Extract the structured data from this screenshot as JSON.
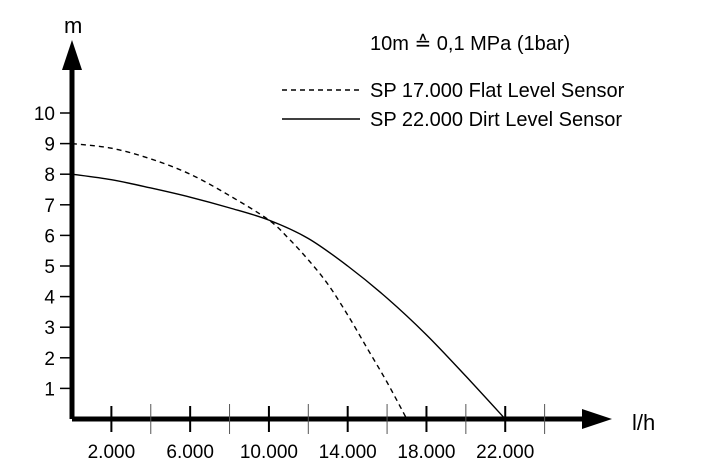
{
  "chart_data": {
    "type": "line",
    "title": "",
    "xlabel": "l/h",
    "ylabel": "m",
    "xlim": [
      0,
      26000
    ],
    "ylim": [
      0,
      11
    ],
    "x_ticks": [
      2000,
      4000,
      6000,
      8000,
      10000,
      12000,
      14000,
      16000,
      18000,
      20000,
      22000,
      24000
    ],
    "x_tick_labels": [
      {
        "x": 2000,
        "label": "2.000"
      },
      {
        "x": 6000,
        "label": "6.000"
      },
      {
        "x": 10000,
        "label": "10.000"
      },
      {
        "x": 14000,
        "label": "14.000"
      },
      {
        "x": 18000,
        "label": "18.000"
      },
      {
        "x": 22000,
        "label": "22.000"
      }
    ],
    "y_ticks": [
      {
        "y": 1,
        "label": "1"
      },
      {
        "y": 2,
        "label": "2"
      },
      {
        "y": 3,
        "label": "3"
      },
      {
        "y": 4,
        "label": "4"
      },
      {
        "y": 5,
        "label": "5"
      },
      {
        "y": 6,
        "label": "6"
      },
      {
        "y": 7,
        "label": "7"
      },
      {
        "y": 8,
        "label": "8"
      },
      {
        "y": 9,
        "label": "9"
      },
      {
        "y": 10,
        "label": "10"
      }
    ],
    "annotation": "10m ≙ 0,1 MPa (1bar)",
    "series": [
      {
        "name": "SP 17.000 Flat Level Sensor",
        "style": "dashed",
        "x": [
          0,
          2000,
          4000,
          6000,
          8000,
          10000,
          11000,
          12000,
          13000,
          14000,
          15000,
          16000,
          17000
        ],
        "y": [
          9.0,
          8.85,
          8.5,
          8.0,
          7.3,
          6.5,
          5.9,
          5.2,
          4.4,
          3.4,
          2.3,
          1.2,
          0
        ]
      },
      {
        "name": "SP 22.000 Dirt Level Sensor",
        "style": "solid",
        "x": [
          0,
          2000,
          4000,
          6000,
          8000,
          10000,
          12000,
          14000,
          16000,
          18000,
          20000,
          22000
        ],
        "y": [
          8.0,
          7.82,
          7.55,
          7.25,
          6.9,
          6.5,
          5.9,
          5.0,
          3.95,
          2.75,
          1.4,
          0
        ]
      }
    ]
  }
}
